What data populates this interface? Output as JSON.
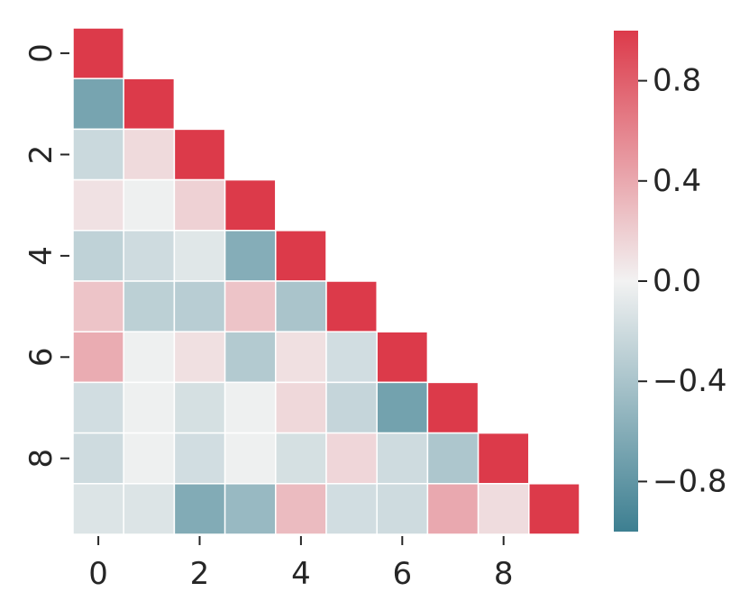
{
  "chart_data": {
    "type": "heatmap",
    "title": "",
    "xlabel": "",
    "ylabel": "",
    "mask": "upper-triangle",
    "rows": [
      0,
      1,
      2,
      3,
      4,
      5,
      6,
      7,
      8,
      9
    ],
    "cols": [
      0,
      1,
      2,
      3,
      4,
      5,
      6,
      7,
      8,
      9
    ],
    "x_tick_labels": [
      "0",
      "2",
      "4",
      "6",
      "8"
    ],
    "y_tick_labels": [
      "0",
      "2",
      "4",
      "6",
      "8"
    ],
    "values": [
      [
        1.0
      ],
      [
        -0.68,
        1.0
      ],
      [
        -0.22,
        0.13,
        1.0
      ],
      [
        0.09,
        -0.02,
        0.18,
        1.0
      ],
      [
        -0.28,
        -0.2,
        -0.1,
        -0.6,
        1.0
      ],
      [
        0.25,
        -0.3,
        -0.32,
        0.25,
        -0.4,
        1.0
      ],
      [
        0.38,
        -0.02,
        0.1,
        -0.35,
        0.1,
        -0.18,
        1.0
      ],
      [
        -0.18,
        -0.02,
        -0.16,
        -0.02,
        0.14,
        -0.25,
        -0.7,
        1.0
      ],
      [
        -0.2,
        -0.02,
        -0.18,
        -0.02,
        -0.16,
        0.15,
        -0.2,
        -0.38,
        1.0
      ],
      [
        -0.12,
        -0.12,
        -0.62,
        -0.5,
        0.3,
        -0.18,
        -0.2,
        0.4,
        0.12,
        1.0
      ]
    ],
    "colorbar": {
      "range": [
        -1.0,
        1.0
      ],
      "tick_values": [
        0.8,
        0.4,
        0.0,
        -0.4,
        -0.8
      ],
      "tick_labels": [
        "0.8",
        "0.4",
        "0.0",
        "−0.4",
        "−0.8"
      ]
    },
    "colors": {
      "negative": "#3d7f91",
      "center": "#f2f2f2",
      "positive": "#dc3a4a"
    }
  }
}
